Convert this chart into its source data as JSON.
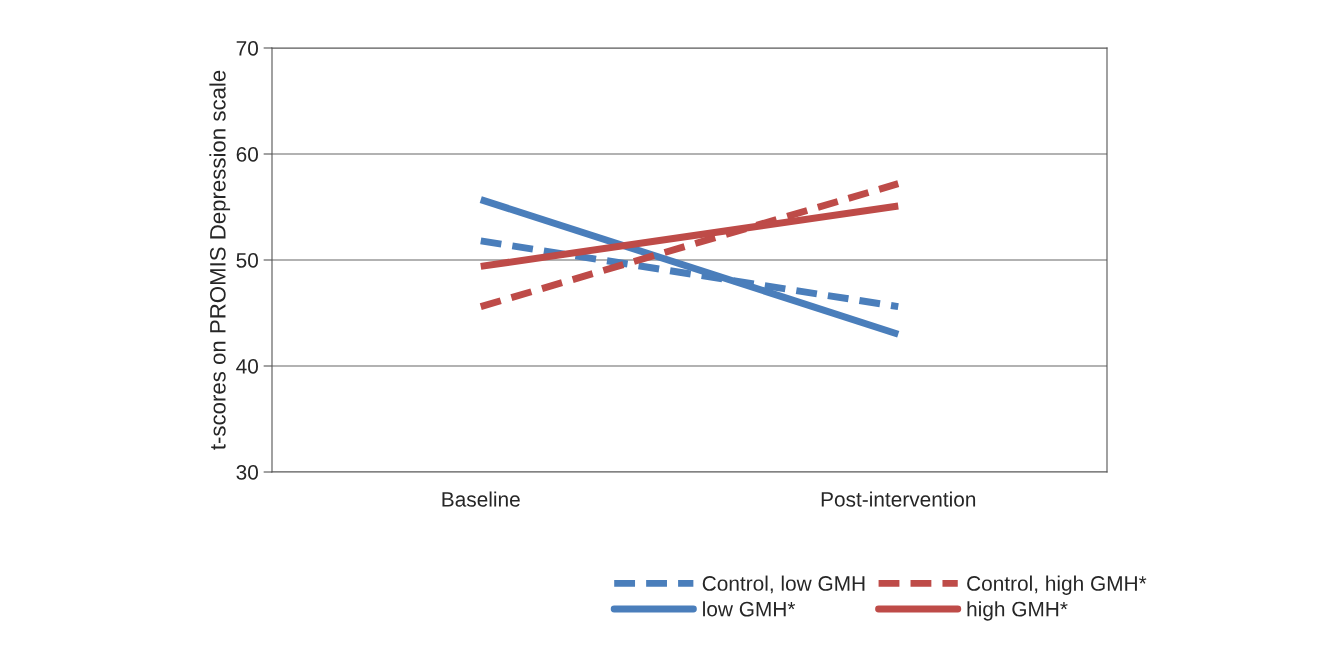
{
  "chart_data": {
    "type": "line",
    "ylabel": "t-scores on PROMIS Depression scale",
    "categories": [
      "Baseline",
      "Post-intervention"
    ],
    "series": [
      {
        "name": "Control, low GMH",
        "color": "#4a7ebb",
        "values": [
          51.8,
          45.6
        ],
        "line_style": "dashed"
      },
      {
        "name": "low GMH*",
        "color": "#4a7ebb",
        "values": [
          55.7,
          43.0
        ],
        "line_style": "solid"
      },
      {
        "name": "Control, high GMH*",
        "color": "#be4b48",
        "values": [
          45.6,
          57.2
        ],
        "line_style": "dashed"
      },
      {
        "name": "high GMH*",
        "color": "#be4b48",
        "values": [
          49.4,
          55.1
        ],
        "line_style": "solid"
      }
    ],
    "ylim": [
      30,
      70
    ],
    "yticks": [
      30,
      40,
      50,
      60,
      70
    ],
    "grid": "y",
    "legend": "bottom right",
    "marker": "none"
  }
}
